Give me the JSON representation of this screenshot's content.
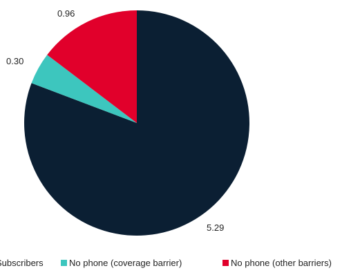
{
  "chart_data": {
    "type": "pie",
    "slices": [
      {
        "name": "Subscribers",
        "value": 5.29,
        "label": "5.29",
        "color": "#0b1f33"
      },
      {
        "name": "No phone (coverage barrier)",
        "value": 0.3,
        "label": "0.30",
        "color": "#3dc6be"
      },
      {
        "name": "No phone (other barriers)",
        "value": 0.96,
        "label": "0.96",
        "color": "#e1002b"
      }
    ],
    "legend": {
      "position": "bottom",
      "entries": [
        {
          "text": "Subscribers",
          "color": "#0b1f33"
        },
        {
          "text": "No phone (coverage barrier)",
          "color": "#3dc6be"
        },
        {
          "text": "No phone (other barriers)",
          "color": "#e1002b"
        }
      ]
    },
    "start_angle": "12 o'clock",
    "direction": "clockwise"
  }
}
